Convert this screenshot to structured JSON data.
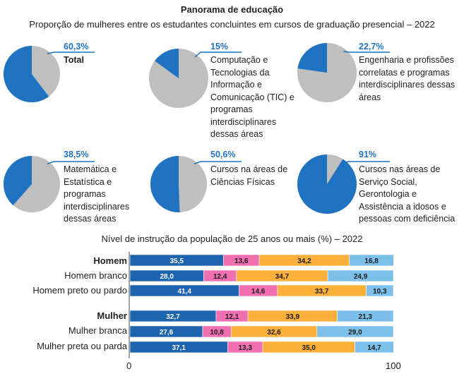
{
  "header": {
    "title": "Panorama de educação",
    "subtitle": "Proporção de mulheres entre os estudantes concluintes em cursos de graduação presencial – 2022"
  },
  "colors": {
    "pie_highlight": "#1f73c1",
    "pie_rest": "#bfbfbf",
    "pct_text": "#1f73c1",
    "segments": [
      "#1e63ad",
      "#ef6fb0",
      "#fbb03b",
      "#7cc0ea"
    ]
  },
  "chart_data": [
    {
      "type": "pie",
      "title": "Proporção de mulheres entre os estudantes concluintes em cursos de graduação presencial – 2022",
      "pies": [
        {
          "value": 60.3,
          "pct_text": "60,3%",
          "label": "Total"
        },
        {
          "value": 15.0,
          "pct_text": "15%",
          "label": "Computação e Tecnologias da Informação e Comunicação (TIC) e programas interdisciplinares dessas áreas"
        },
        {
          "value": 22.7,
          "pct_text": "22,7%",
          "label": "Engenharia e profissões correlatas e programas interdisciplinares dessas áreas"
        },
        {
          "value": 38.5,
          "pct_text": "38,5%",
          "label": "Matemática e Estatística e programas interdisciplinares dessas áreas"
        },
        {
          "value": 50.6,
          "pct_text": "50,6%",
          "label": "Cursos na áreas de Ciências Físicas"
        },
        {
          "value": 91.0,
          "pct_text": "91%",
          "label": "Cursos nas áreas de Serviço Social, Gerontologia e Assistência a idosos e pessoas com deficiência"
        }
      ]
    },
    {
      "type": "bar",
      "orientation": "horizontal",
      "stacked": true,
      "title": "Nível de instrução da população de 25 anos ou mais (%) – 2022",
      "xlim": [
        0,
        100
      ],
      "x_ticks": [
        "0",
        "100"
      ],
      "categories": [
        "Homem",
        "Homem branco",
        "Homem preto ou pardo",
        "Mulher",
        "Mulher branca",
        "Mulher preta ou parda"
      ],
      "values": [
        [
          35.5,
          13.6,
          34.2,
          16.8
        ],
        [
          28.0,
          12.4,
          34.7,
          24.9
        ],
        [
          41.4,
          14.6,
          33.7,
          10.3
        ],
        [
          32.7,
          12.1,
          33.9,
          21.3
        ],
        [
          27.6,
          10.8,
          32.6,
          29.0
        ],
        [
          37.1,
          13.3,
          35.0,
          14.7
        ]
      ],
      "value_labels": [
        [
          "35,5",
          "13,6",
          "34,2",
          "16,8"
        ],
        [
          "28,0",
          "12,4",
          "34,7",
          "24,9"
        ],
        [
          "41,4",
          "14,6",
          "33,7",
          "10,3"
        ],
        [
          "32,7",
          "12,1",
          "33,9",
          "21,3"
        ],
        [
          "27,6",
          "10,8",
          "32,6",
          "29,0"
        ],
        [
          "37,1",
          "13,3",
          "35,0",
          "14,7"
        ]
      ]
    }
  ]
}
